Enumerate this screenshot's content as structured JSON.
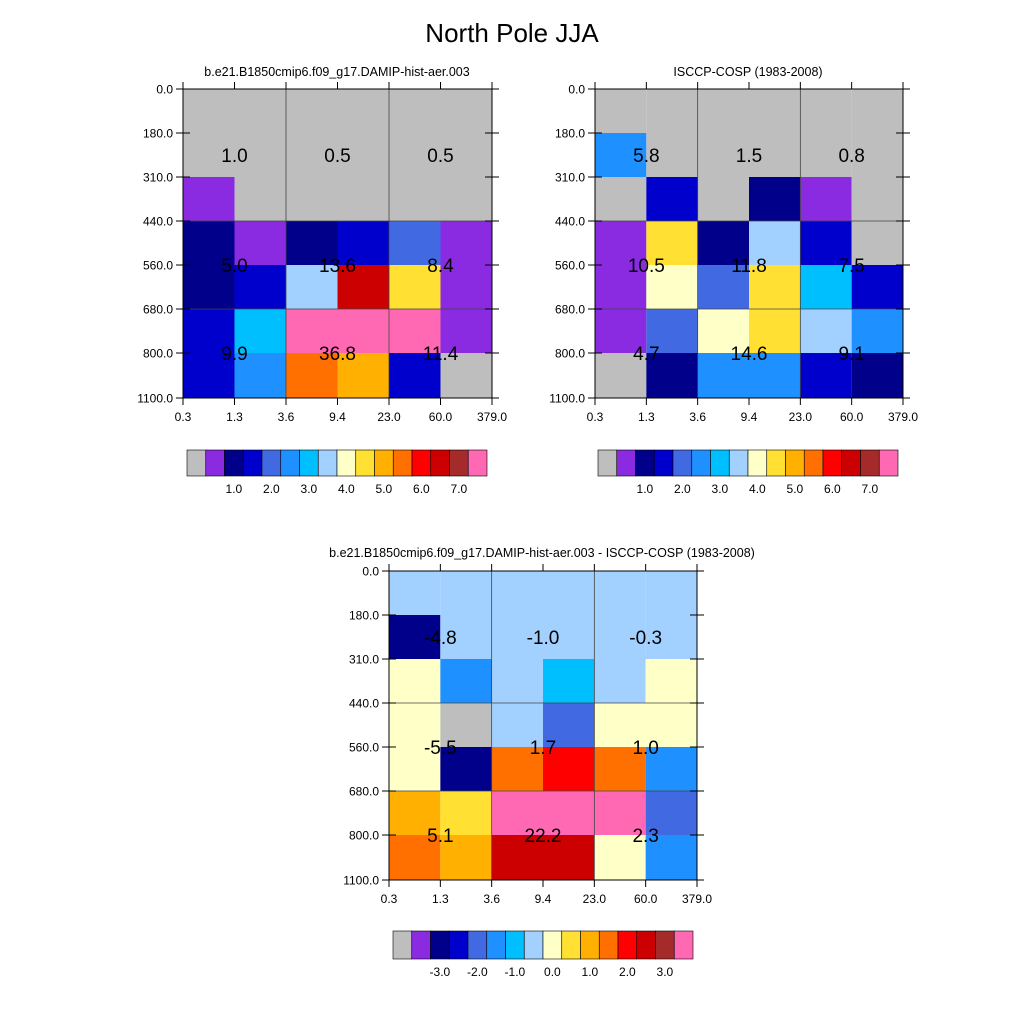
{
  "title": "North Pole JJA",
  "colors": {
    "main_palette": [
      "#bebebe",
      "#8a2be2",
      "#00008b",
      "#0000cd",
      "#4169e1",
      "#1e90ff",
      "#00bfff",
      "#a2d1ff",
      "#ffffc8",
      "#ffe033",
      "#ffb000",
      "#ff7000",
      "#ff0000",
      "#cc0000",
      "#a52a2a",
      "#ff69b4"
    ],
    "diff_palette": [
      "#bebebe",
      "#8a2be2",
      "#00008b",
      "#0000cd",
      "#4169e1",
      "#1e90ff",
      "#00bfff",
      "#a2d1ff",
      "#ffffc8",
      "#ffe033",
      "#ffb000",
      "#ff7000",
      "#ff0000",
      "#cc0000",
      "#a52a2a",
      "#ff69b4"
    ]
  },
  "chart_data": [
    {
      "id": "model",
      "type": "heatmap",
      "title": "b.e21.B1850cmip6.f09_g17.DAMIP-hist-aer.003",
      "x_ticks": [
        "0.3",
        "1.3",
        "3.6",
        "9.4",
        "23.0",
        "60.0",
        "379.0"
      ],
      "y_ticks": [
        "0.0",
        "180.0",
        "310.0",
        "440.0",
        "560.0",
        "680.0",
        "800.0",
        "1100.0"
      ],
      "cell_color_index": [
        [
          0,
          0,
          0,
          0,
          0,
          0
        ],
        [
          0,
          0,
          0,
          0,
          0,
          0
        ],
        [
          1,
          0,
          0,
          0,
          0,
          0
        ],
        [
          2,
          1,
          2,
          3,
          4,
          1
        ],
        [
          2,
          3,
          7,
          13,
          9,
          1
        ],
        [
          3,
          6,
          15,
          15,
          15,
          1
        ],
        [
          3,
          5,
          11,
          10,
          3,
          0
        ]
      ],
      "summary_values": [
        [
          "1.0",
          "0.5",
          "0.5"
        ],
        [
          "5.0",
          "13.6",
          "8.4"
        ],
        [
          "9.9",
          "36.8",
          "11.4"
        ]
      ],
      "colorbar_labels": [
        "1.0",
        "2.0",
        "3.0",
        "4.0",
        "5.0",
        "6.0",
        "7.0"
      ]
    },
    {
      "id": "obs",
      "type": "heatmap",
      "title": "ISCCP-COSP (1983-2008)",
      "x_ticks": [
        "0.3",
        "1.3",
        "3.6",
        "9.4",
        "23.0",
        "60.0",
        "379.0"
      ],
      "y_ticks": [
        "0.0",
        "180.0",
        "310.0",
        "440.0",
        "560.0",
        "680.0",
        "800.0",
        "1100.0"
      ],
      "cell_color_index": [
        [
          0,
          0,
          0,
          0,
          0,
          0
        ],
        [
          5,
          0,
          0,
          0,
          0,
          0
        ],
        [
          0,
          3,
          0,
          2,
          1,
          0
        ],
        [
          1,
          9,
          2,
          7,
          3,
          0
        ],
        [
          1,
          8,
          4,
          9,
          6,
          3
        ],
        [
          1,
          4,
          8,
          9,
          7,
          5
        ],
        [
          0,
          2,
          5,
          5,
          3,
          2
        ]
      ],
      "summary_values": [
        [
          "5.8",
          "1.5",
          "0.8"
        ],
        [
          "10.5",
          "11.8",
          "7.5"
        ],
        [
          "4.7",
          "14.6",
          "9.1"
        ]
      ],
      "colorbar_labels": [
        "1.0",
        "2.0",
        "3.0",
        "4.0",
        "5.0",
        "6.0",
        "7.0"
      ]
    },
    {
      "id": "diff",
      "type": "heatmap",
      "title": "b.e21.B1850cmip6.f09_g17.DAMIP-hist-aer.003 - ISCCP-COSP (1983-2008)",
      "x_ticks": [
        "0.3",
        "1.3",
        "3.6",
        "9.4",
        "23.0",
        "60.0",
        "379.0"
      ],
      "y_ticks": [
        "0.0",
        "180.0",
        "310.0",
        "440.0",
        "560.0",
        "680.0",
        "800.0",
        "1100.0"
      ],
      "cell_color_index": [
        [
          7,
          7,
          7,
          7,
          7,
          7
        ],
        [
          2,
          7,
          7,
          7,
          7,
          7
        ],
        [
          8,
          5,
          7,
          6,
          7,
          8
        ],
        [
          8,
          0,
          7,
          4,
          8,
          8
        ],
        [
          8,
          2,
          11,
          12,
          11,
          5
        ],
        [
          10,
          9,
          15,
          15,
          15,
          4
        ],
        [
          11,
          10,
          13,
          13,
          8,
          5
        ]
      ],
      "summary_values": [
        [
          "-4.8",
          "-1.0",
          "-0.3"
        ],
        [
          "-5.5",
          "1.7",
          "1.0"
        ],
        [
          "5.1",
          "22.2",
          "2.3"
        ]
      ],
      "colorbar_labels": [
        "-3.0",
        "-2.0",
        "-1.0",
        "0.0",
        "1.0",
        "2.0",
        "3.0"
      ]
    }
  ]
}
